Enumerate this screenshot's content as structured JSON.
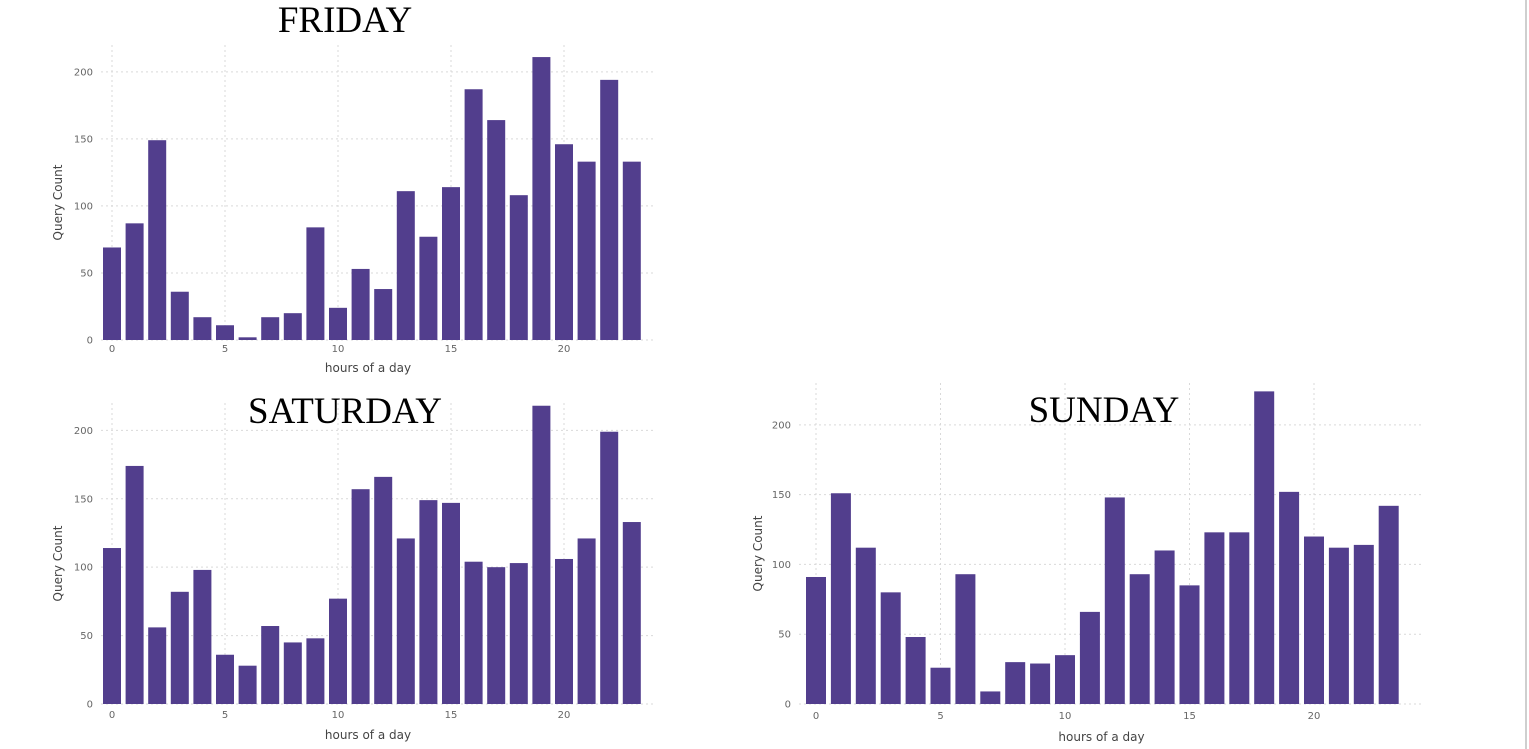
{
  "colors": {
    "bar": "#523e8d",
    "grid": "#d9d9d9",
    "tick": "#666666"
  },
  "chart_data": [
    {
      "type": "bar",
      "title": "FRIDAY",
      "xlabel": "hours of a day",
      "ylabel": "Query Count",
      "x": [
        0,
        1,
        2,
        3,
        4,
        5,
        6,
        7,
        8,
        9,
        10,
        11,
        12,
        13,
        14,
        15,
        16,
        17,
        18,
        19,
        20,
        21,
        22,
        23
      ],
      "values": [
        69,
        87,
        149,
        36,
        17,
        11,
        2,
        17,
        20,
        84,
        24,
        53,
        38,
        111,
        77,
        114,
        187,
        164,
        108,
        211,
        146,
        133,
        194,
        133
      ],
      "xticks": [
        "0",
        "5",
        "10",
        "15",
        "20"
      ],
      "yticks": [
        "0",
        "50",
        "100",
        "150",
        "200"
      ],
      "ylim": [
        0,
        220
      ],
      "grid": true
    },
    {
      "type": "bar",
      "title": "SATURDAY",
      "xlabel": "hours of a day",
      "ylabel": "Query Count",
      "x": [
        0,
        1,
        2,
        3,
        4,
        5,
        6,
        7,
        8,
        9,
        10,
        11,
        12,
        13,
        14,
        15,
        16,
        17,
        18,
        19,
        20,
        21,
        22,
        23
      ],
      "values": [
        114,
        174,
        56,
        82,
        98,
        36,
        28,
        57,
        45,
        48,
        77,
        157,
        166,
        121,
        149,
        147,
        104,
        100,
        103,
        218,
        106,
        121,
        199,
        133
      ],
      "xticks": [
        "0",
        "5",
        "10",
        "15",
        "20"
      ],
      "yticks": [
        "0",
        "50",
        "100",
        "150",
        "200"
      ],
      "ylim": [
        0,
        220
      ],
      "grid": true
    },
    {
      "type": "bar",
      "title": "SUNDAY",
      "xlabel": "hours of a day",
      "ylabel": "Query Count",
      "x": [
        0,
        1,
        2,
        3,
        4,
        5,
        6,
        7,
        8,
        9,
        10,
        11,
        12,
        13,
        14,
        15,
        16,
        17,
        18,
        19,
        20,
        21,
        22,
        23
      ],
      "values": [
        91,
        151,
        112,
        80,
        48,
        26,
        93,
        9,
        30,
        29,
        35,
        66,
        148,
        93,
        110,
        85,
        123,
        123,
        224,
        152,
        120,
        112,
        114,
        142
      ],
      "xticks": [
        "0",
        "5",
        "10",
        "15",
        "20"
      ],
      "yticks": [
        "0",
        "50",
        "100",
        "150",
        "200"
      ],
      "ylim": [
        0,
        230
      ],
      "grid": true
    }
  ]
}
